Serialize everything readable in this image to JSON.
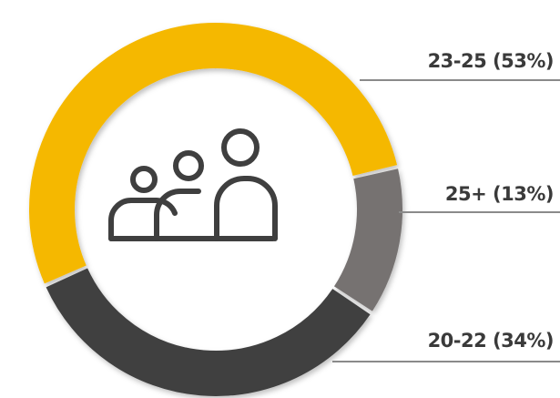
{
  "chart_data": {
    "type": "donut",
    "values": [
      53,
      13,
      34
    ],
    "value_labels": [
      "23-25 (53%)",
      "25+ (13%)",
      "20-22 (34%)"
    ],
    "colors": [
      "#f5b800",
      "#767271",
      "#404040"
    ]
  }
}
